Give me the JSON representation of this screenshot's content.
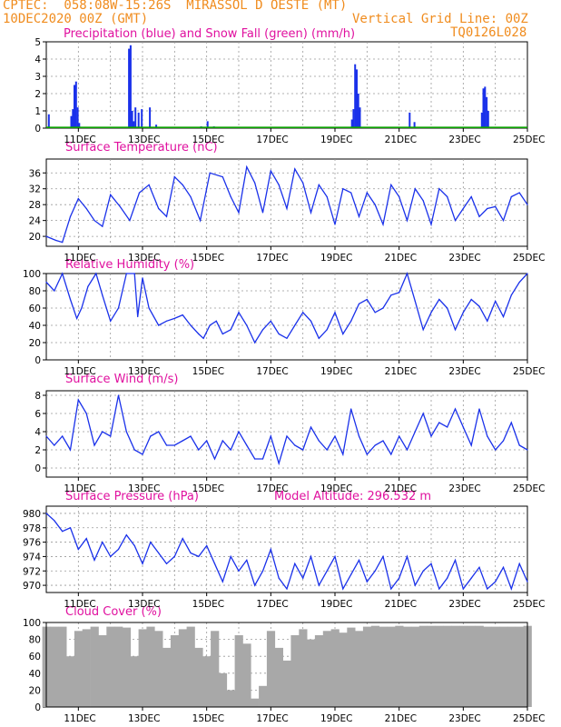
{
  "header": {
    "line1_left": "CPTEC:  058:08W-15:26S  MIRASSOL D OESTE (MT)",
    "line2_left": "10DEC2020 00Z (GMT)",
    "line2_right": "Vertical Grid Line: 00Z",
    "line3_right": "TQ0126L028"
  },
  "x_axis": {
    "ticks": [
      "11DEC",
      "13DEC",
      "15DEC",
      "17DEC",
      "19DEC",
      "21DEC",
      "23DEC",
      "25DEC"
    ]
  },
  "chart_data": [
    {
      "type": "bar",
      "title": "Precipitation (blue) and Snow Fall (green) (mm/h)",
      "ylim": [
        0,
        5
      ],
      "yticks": [
        0,
        1,
        2,
        3,
        4,
        5
      ],
      "colors": {
        "precip": "#1a31ea",
        "snow": "#0ba000"
      },
      "x": [
        0.05,
        0.75,
        0.8,
        0.85,
        0.9,
        0.95,
        1.0,
        2.55,
        2.6,
        2.65,
        2.7,
        2.75,
        2.85,
        2.95,
        3.2,
        3.4,
        4.8,
        5.0,
        5.2,
        6.5,
        7.0,
        8.0,
        9.5,
        9.55,
        9.6,
        9.65,
        9.7,
        9.75,
        11.3,
        11.45,
        13.55,
        13.6,
        13.65,
        13.7,
        13.75
      ],
      "values": [
        0.8,
        0.7,
        1.1,
        2.5,
        2.7,
        1.2,
        0.3,
        4.6,
        4.8,
        1.0,
        0.4,
        1.2,
        0.9,
        1.1,
        1.2,
        0.2,
        0.1,
        0.4,
        0.1,
        0.05,
        0.05,
        0.05,
        0.5,
        1.1,
        3.7,
        3.4,
        2.0,
        1.2,
        0.9,
        0.35,
        0.9,
        2.3,
        2.4,
        1.8,
        1.0
      ],
      "snow": 0
    },
    {
      "type": "line",
      "title": "Surface Temperature (nC)",
      "ylim": [
        17.5,
        39.5
      ],
      "yticks": [
        20,
        24,
        28,
        32,
        36
      ],
      "color": "#1a31ea",
      "x": [
        0,
        0.3,
        0.5,
        0.75,
        1.0,
        1.25,
        1.5,
        1.75,
        2.0,
        2.3,
        2.6,
        2.9,
        3.2,
        3.5,
        3.75,
        4.0,
        4.25,
        4.5,
        4.8,
        5.1,
        5.5,
        5.75,
        6.0,
        6.25,
        6.5,
        6.75,
        7.0,
        7.25,
        7.5,
        7.75,
        8.0,
        8.25,
        8.5,
        8.75,
        9.0,
        9.25,
        9.5,
        9.75,
        10.0,
        10.25,
        10.5,
        10.75,
        11.0,
        11.25,
        11.5,
        11.75,
        12.0,
        12.25,
        12.5,
        12.75,
        13.0,
        13.25,
        13.5,
        13.75,
        14.0,
        14.25,
        14.5,
        14.75,
        15.0
      ],
      "values": [
        20,
        19,
        18.5,
        25,
        29.5,
        27,
        24,
        22.5,
        30.5,
        27.5,
        24,
        31,
        33,
        27,
        25,
        35,
        33,
        30,
        24,
        36,
        35,
        30,
        26,
        37.5,
        33.5,
        26,
        36.5,
        33,
        27,
        37,
        33.5,
        26,
        33,
        30,
        23,
        32,
        31,
        25,
        31,
        28,
        23,
        33,
        30,
        24,
        32,
        29,
        23,
        32,
        30,
        24,
        27,
        30,
        25,
        27,
        27.5,
        24,
        30,
        31,
        28
      ]
    },
    {
      "type": "line",
      "title": "Relative Humidity (%)",
      "ylim": [
        0,
        100
      ],
      "yticks": [
        0,
        20,
        40,
        60,
        80,
        100
      ],
      "color": "#1a31ea",
      "x": [
        0,
        0.25,
        0.5,
        0.75,
        0.95,
        1.1,
        1.3,
        1.55,
        1.75,
        2.0,
        2.25,
        2.5,
        2.75,
        2.85,
        3.0,
        3.2,
        3.5,
        3.75,
        4.0,
        4.25,
        4.5,
        4.75,
        4.9,
        5.1,
        5.3,
        5.5,
        5.75,
        6.0,
        6.25,
        6.5,
        6.75,
        7.0,
        7.25,
        7.5,
        7.75,
        8.0,
        8.25,
        8.5,
        8.75,
        9.0,
        9.25,
        9.5,
        9.75,
        10.0,
        10.25,
        10.5,
        10.75,
        11.0,
        11.25,
        11.5,
        11.75,
        12.0,
        12.25,
        12.5,
        12.75,
        13.0,
        13.25,
        13.5,
        13.75,
        14.0,
        14.25,
        14.5,
        14.75,
        15.0
      ],
      "values": [
        90,
        80,
        100,
        70,
        48,
        60,
        85,
        100,
        75,
        45,
        60,
        100,
        100,
        50,
        95,
        60,
        40,
        45,
        48,
        52,
        40,
        30,
        25,
        40,
        45,
        30,
        35,
        55,
        40,
        20,
        35,
        45,
        30,
        25,
        40,
        55,
        45,
        25,
        35,
        55,
        30,
        45,
        65,
        70,
        55,
        60,
        75,
        78,
        100,
        68,
        35,
        55,
        70,
        60,
        35,
        55,
        70,
        62,
        45,
        68,
        50,
        75,
        90,
        100
      ]
    },
    {
      "type": "line",
      "title": "Surface Wind (m/s)",
      "ylim": [
        -1,
        8.5
      ],
      "yticks": [
        0,
        2,
        4,
        6,
        8
      ],
      "color": "#1a31ea",
      "x": [
        0,
        0.25,
        0.5,
        0.75,
        1.0,
        1.25,
        1.5,
        1.75,
        2.0,
        2.25,
        2.5,
        2.75,
        3.0,
        3.25,
        3.5,
        3.75,
        4.0,
        4.25,
        4.5,
        4.75,
        5.0,
        5.25,
        5.5,
        5.75,
        6.0,
        6.25,
        6.5,
        6.75,
        7.0,
        7.25,
        7.5,
        7.75,
        8.0,
        8.25,
        8.5,
        8.75,
        9.0,
        9.25,
        9.5,
        9.75,
        10.0,
        10.25,
        10.5,
        10.75,
        11.0,
        11.25,
        11.5,
        11.75,
        12.0,
        12.25,
        12.5,
        12.75,
        13.0,
        13.25,
        13.5,
        13.75,
        14.0,
        14.25,
        14.5,
        14.75,
        15.0
      ],
      "values": [
        3.5,
        2.5,
        3.5,
        2.0,
        7.5,
        6.0,
        2.5,
        4.0,
        3.5,
        8.0,
        4.0,
        2.0,
        1.5,
        3.5,
        4.0,
        2.5,
        2.5,
        3.0,
        3.5,
        2.0,
        3.0,
        1.0,
        3.0,
        2.0,
        4.0,
        2.5,
        1.0,
        1.0,
        3.5,
        0.5,
        3.5,
        2.5,
        2.0,
        4.5,
        3.0,
        2.0,
        3.5,
        1.5,
        6.5,
        3.5,
        1.5,
        2.5,
        3.0,
        1.5,
        3.5,
        2.0,
        4.0,
        6.0,
        3.5,
        5.0,
        4.5,
        6.5,
        4.5,
        2.5,
        6.5,
        3.5,
        2.0,
        3.0,
        5.0,
        2.5,
        2.0
      ]
    },
    {
      "type": "line",
      "title": "Surface Pressure (hPa)",
      "annotation": "Model Altitude: 296.532 m",
      "ylim": [
        969,
        981
      ],
      "yticks": [
        970,
        972,
        974,
        976,
        978,
        980
      ],
      "color": "#1a31ea",
      "x": [
        0,
        0.25,
        0.5,
        0.75,
        1.0,
        1.25,
        1.5,
        1.75,
        2.0,
        2.25,
        2.5,
        2.75,
        3.0,
        3.25,
        3.5,
        3.75,
        4.0,
        4.25,
        4.5,
        4.75,
        5.0,
        5.25,
        5.5,
        5.75,
        6.0,
        6.25,
        6.5,
        6.75,
        7.0,
        7.25,
        7.5,
        7.75,
        8.0,
        8.25,
        8.5,
        8.75,
        9.0,
        9.25,
        9.5,
        9.75,
        10.0,
        10.25,
        10.5,
        10.75,
        11.0,
        11.25,
        11.5,
        11.75,
        12.0,
        12.25,
        12.5,
        12.75,
        13.0,
        13.25,
        13.5,
        13.75,
        14.0,
        14.25,
        14.5,
        14.75,
        15.0
      ],
      "values": [
        980,
        979,
        977.5,
        978,
        975,
        976.5,
        973.5,
        976,
        974,
        975,
        977,
        975.5,
        973,
        976,
        974.5,
        973,
        974,
        976.5,
        974.5,
        974,
        975.5,
        973,
        970.5,
        974,
        972,
        973.5,
        970,
        972,
        975,
        971,
        969.5,
        973,
        971,
        974,
        970,
        972,
        974,
        969.5,
        971.5,
        973.5,
        970.5,
        972,
        974,
        969.5,
        971,
        974,
        970,
        972,
        973,
        969.5,
        971,
        973.5,
        969.5,
        971,
        972.5,
        969.5,
        970.5,
        972.5,
        969.5,
        973,
        970.5
      ]
    },
    {
      "type": "bar",
      "title": "Cloud Cover (%)",
      "ylim": [
        0,
        100
      ],
      "yticks": [
        0,
        20,
        40,
        60,
        80,
        100
      ],
      "color": "#a8a8a8",
      "x": [
        0,
        0.25,
        0.5,
        0.75,
        1.0,
        1.25,
        1.5,
        1.75,
        2.0,
        2.25,
        2.5,
        2.75,
        3.0,
        3.25,
        3.5,
        3.75,
        4.0,
        4.25,
        4.5,
        4.75,
        5.0,
        5.25,
        5.5,
        5.75,
        6.0,
        6.25,
        6.5,
        6.75,
        7.0,
        7.25,
        7.5,
        7.75,
        8.0,
        8.25,
        8.5,
        8.75,
        9.0,
        9.25,
        9.5,
        9.75,
        10.0,
        10.25,
        10.5,
        10.75,
        11.0,
        11.25,
        11.5,
        11.75,
        12.0,
        12.25,
        12.5,
        12.75,
        13.0,
        13.25,
        13.5,
        13.75,
        14.0,
        14.25,
        14.5,
        14.75,
        15.0
      ],
      "values": [
        95,
        95,
        95,
        60,
        90,
        92,
        95,
        85,
        95,
        95,
        94,
        60,
        92,
        95,
        90,
        70,
        85,
        92,
        95,
        70,
        60,
        90,
        40,
        20,
        85,
        75,
        10,
        25,
        90,
        70,
        55,
        85,
        92,
        80,
        85,
        90,
        92,
        88,
        94,
        90,
        95,
        96,
        95,
        95,
        96,
        95,
        95,
        96,
        96,
        96,
        96,
        96,
        96,
        96,
        96,
        95,
        95,
        95,
        95,
        95,
        96
      ]
    }
  ]
}
